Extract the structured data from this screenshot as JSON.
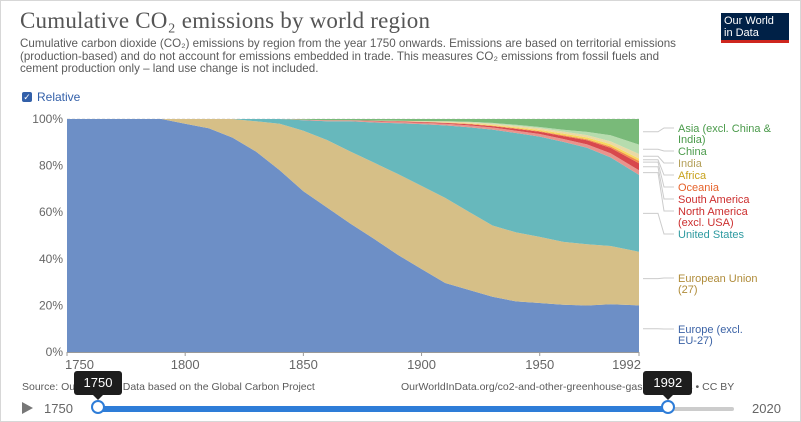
{
  "header": {
    "title": "Cumulative CO₂ emissions by world region",
    "subtitle": "Cumulative carbon dioxide (CO₂) emissions by region from the year 1750 onwards. Emissions are based on territorial emissions (production-based) and do not account for emissions embedded in trade. This measures CO₂ emissions from fossil fuels and cement production only – land use change is not included.",
    "logo_line1": "Our World",
    "logo_line2": "in Data"
  },
  "controls": {
    "relative_label": "Relative",
    "relative_checked": true
  },
  "chart_data": {
    "type": "area",
    "stacked": true,
    "relative": true,
    "x": [
      1750,
      1790,
      1800,
      1810,
      1820,
      1830,
      1840,
      1850,
      1860,
      1870,
      1880,
      1890,
      1900,
      1910,
      1920,
      1930,
      1940,
      1950,
      1960,
      1970,
      1980,
      1992
    ],
    "ylim": [
      0,
      100
    ],
    "yticks": [
      "0%",
      "20%",
      "40%",
      "60%",
      "80%",
      "100%"
    ],
    "xticks": [
      1750,
      1800,
      1850,
      1900,
      1950,
      1992
    ],
    "series": [
      {
        "name": "Europe (excl. EU-27)",
        "color": "#6d8fc6",
        "values": [
          100,
          100,
          98,
          96,
          92,
          86,
          78,
          69,
          62,
          55,
          49,
          42,
          36,
          30,
          27,
          24,
          22,
          21.5,
          21,
          20.5,
          20.5,
          20
        ]
      },
      {
        "name": "European Union (27)",
        "color": "#d6bf87",
        "values": [
          0,
          0,
          2,
          4,
          8,
          13,
          20,
          26,
          29,
          31,
          33,
          35,
          36,
          37,
          34,
          31,
          30,
          29,
          28,
          27,
          25,
          23
        ]
      },
      {
        "name": "United States",
        "color": "#67b8bc",
        "values": [
          0,
          0,
          0,
          0,
          0,
          1,
          2,
          4.5,
          8,
          13,
          17.5,
          22,
          26.8,
          31.5,
          36.7,
          41.7,
          43.2,
          44,
          44.5,
          42.5,
          38,
          33
        ]
      },
      {
        "name": "North America (excl. USA)",
        "color": "#e8948d",
        "values": [
          0,
          0,
          0,
          0,
          0,
          0,
          0,
          0.2,
          0.4,
          0.4,
          0.5,
          0.5,
          0.6,
          0.7,
          0.8,
          0.9,
          1,
          1.1,
          1.3,
          1.5,
          1.8,
          2
        ]
      },
      {
        "name": "South America",
        "color": "#d8484d",
        "values": [
          0,
          0,
          0,
          0,
          0,
          0,
          0,
          0,
          0.1,
          0.1,
          0.2,
          0.3,
          0.3,
          0.4,
          0.5,
          0.6,
          0.8,
          1,
          1.3,
          1.8,
          2.3,
          3
        ]
      },
      {
        "name": "Oceania",
        "color": "#f28d4b",
        "values": [
          0,
          0,
          0,
          0,
          0,
          0,
          0,
          0,
          0,
          0,
          0,
          0,
          0.1,
          0.1,
          0.2,
          0.2,
          0.3,
          0.3,
          0.4,
          0.5,
          0.6,
          1
        ]
      },
      {
        "name": "Africa",
        "color": "#f7d85f",
        "values": [
          0,
          0,
          0,
          0,
          0,
          0,
          0,
          0,
          0,
          0,
          0,
          0,
          0,
          0.1,
          0.2,
          0.3,
          0.4,
          0.5,
          0.7,
          0.8,
          1,
          1
        ]
      },
      {
        "name": "India",
        "color": "#ead9a5",
        "values": [
          0,
          0,
          0,
          0,
          0,
          0,
          0,
          0,
          0,
          0,
          0.1,
          0.2,
          0.3,
          0.4,
          0.5,
          0.6,
          0.7,
          0.8,
          0.9,
          1,
          1.2,
          2
        ]
      },
      {
        "name": "China",
        "color": "#b6dcae",
        "values": [
          0,
          0,
          0,
          0,
          0,
          0,
          0,
          0,
          0,
          0,
          0,
          0,
          0,
          0.1,
          0.2,
          0.3,
          0.4,
          0.5,
          0.8,
          1.4,
          2.6,
          4
        ]
      },
      {
        "name": "Asia (excl. China & India)",
        "color": "#79ba79",
        "values": [
          0,
          0,
          0,
          0,
          0,
          0,
          0,
          0.3,
          0.5,
          0.5,
          0.7,
          0.8,
          0.9,
          1.0,
          1.2,
          1.7,
          2.5,
          3.5,
          4.8,
          5.7,
          7.0,
          11.0
        ]
      }
    ],
    "legend_placement": "right"
  },
  "legend_labels": [
    {
      "series": "Asia (excl. China & India)",
      "lines": [
        "Asia (excl. China &",
        "India)"
      ],
      "color": "#4a9a4a"
    },
    {
      "series": "China",
      "lines": [
        "China"
      ],
      "color": "#4a9a4a"
    },
    {
      "series": "India",
      "lines": [
        "India"
      ],
      "color": "#b4a05a"
    },
    {
      "series": "Africa",
      "lines": [
        "Africa"
      ],
      "color": "#c8a21c"
    },
    {
      "series": "Oceania",
      "lines": [
        "Oceania"
      ],
      "color": "#e6622a"
    },
    {
      "series": "South America",
      "lines": [
        "South America"
      ],
      "color": "#cc2e2e"
    },
    {
      "series": "North America (excl. USA)",
      "lines": [
        "North America",
        "(excl. USA)"
      ],
      "color": "#cc2e2e"
    },
    {
      "series": "United States",
      "lines": [
        "United States"
      ],
      "color": "#2e9aa0"
    },
    {
      "series": "European Union (27)",
      "lines": [
        "European Union",
        "(27)"
      ],
      "color": "#b08c3a"
    },
    {
      "series": "Europe (excl. EU-27)",
      "lines": [
        "Europe (excl.",
        "EU-27)"
      ],
      "color": "#3c63a6"
    }
  ],
  "footer": {
    "source_left": "Source: Our World in Data based on the Global Carbon Project",
    "source_right": "OurWorldInData.org/co2-and-other-greenhouse-gas-emissions • CC BY"
  },
  "timeline": {
    "play_icon": "play-icon",
    "min_label": "1750",
    "max_label": "2020",
    "start_value": "1750",
    "end_value": "1992",
    "start_fraction": 0,
    "end_fraction": 0.896
  }
}
